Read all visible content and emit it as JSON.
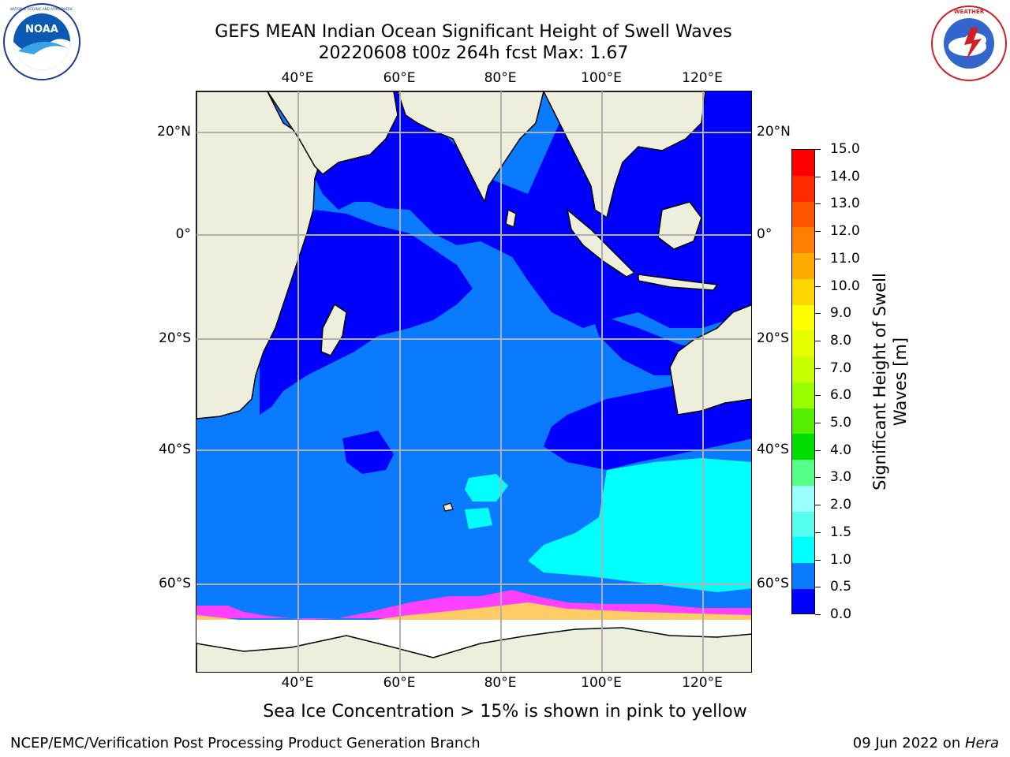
{
  "header": {
    "title_line1": "GEFS MEAN Indian Ocean Significant Height of Swell Waves",
    "title_line2": "20220608 t00z 264h fcst   Max: 1.67"
  },
  "logos": {
    "left": "noaa-logo",
    "right": "national-weather-service-logo"
  },
  "map": {
    "lon_ticks_top": [
      "40°E",
      "60°E",
      "80°E",
      "100°E",
      "120°E"
    ],
    "lon_ticks_bottom": [
      "40°E",
      "60°E",
      "80°E",
      "100°E",
      "120°E"
    ],
    "lat_ticks_left": [
      "20°N",
      "0°",
      "20°S",
      "40°S",
      "60°S"
    ],
    "lat_ticks_right": [
      "20°N",
      "0°",
      "20°S",
      "40°S",
      "60°S"
    ],
    "colors": {
      "land": "#eeeedc",
      "ice": "#ffffff",
      "swell_0_0.5": "#0000ff",
      "swell_0.5_1.0": "#0a7bff",
      "swell_1.0_1.5": "#00ffff",
      "swell_1.5_2.0": "#3cffff",
      "ice_pink": "#ff40ff",
      "ice_yellow": "#ffcc66"
    }
  },
  "colorbar": {
    "title": "Significant Height of Swell Waves [m]",
    "title_line1": "Significant Height of Swell",
    "title_line2": "Waves [m]",
    "labels": [
      "15.0",
      "14.0",
      "13.0",
      "12.0",
      "11.0",
      "10.0",
      "9.0",
      "8.0",
      "7.0",
      "6.0",
      "5.0",
      "4.0",
      "3.0",
      "2.0",
      "1.5",
      "1.0",
      "0.5",
      "0.0"
    ],
    "segment_colors_top_to_bottom": [
      "#ff0000",
      "#ff2a00",
      "#ff5500",
      "#ff8000",
      "#ffaa00",
      "#ffd500",
      "#ffff00",
      "#e5ff00",
      "#c8ff00",
      "#99ff00",
      "#55ee00",
      "#00dd00",
      "#55ff88",
      "#99ffff",
      "#55ffee",
      "#00ffff",
      "#0a7bff",
      "#0000ff"
    ]
  },
  "footer": {
    "ice_note": "Sea Ice Concentration > 15% is shown in pink to yellow",
    "credits": "NCEP/EMC/Verification Post Processing Product Generation Branch",
    "date_prefix": "09 Jun 2022 on ",
    "date_host": "Hera"
  }
}
